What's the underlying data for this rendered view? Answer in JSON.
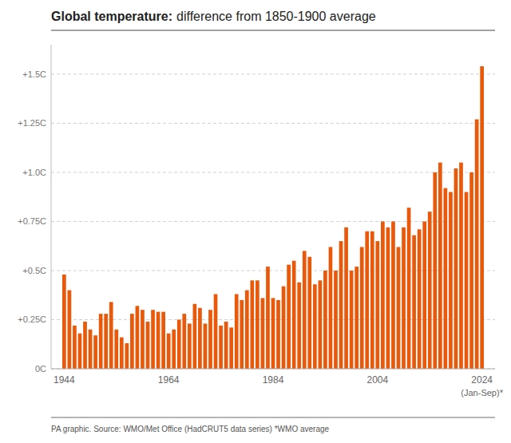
{
  "chart_data": {
    "type": "bar",
    "title": "Global temperature:",
    "subtitle": "difference from 1850-1900 average",
    "annotations": [
      {
        "text": "(Jan-Sep)*",
        "x": 2024
      },
      {
        "text": "PA graphic. Source: WMO/Met Office (HadCRUT5 data series) *WMO average"
      }
    ],
    "x": [
      1944,
      1945,
      1946,
      1947,
      1948,
      1949,
      1950,
      1951,
      1952,
      1953,
      1954,
      1955,
      1956,
      1957,
      1958,
      1959,
      1960,
      1961,
      1962,
      1963,
      1964,
      1965,
      1966,
      1967,
      1968,
      1969,
      1970,
      1971,
      1972,
      1973,
      1974,
      1975,
      1976,
      1977,
      1978,
      1979,
      1980,
      1981,
      1982,
      1983,
      1984,
      1985,
      1986,
      1987,
      1988,
      1989,
      1990,
      1991,
      1992,
      1993,
      1994,
      1995,
      1996,
      1997,
      1998,
      1999,
      2000,
      2001,
      2002,
      2003,
      2004,
      2005,
      2006,
      2007,
      2008,
      2009,
      2010,
      2011,
      2012,
      2013,
      2014,
      2015,
      2016,
      2017,
      2018,
      2019,
      2020,
      2021,
      2022,
      2023,
      2024
    ],
    "values": [
      0.48,
      0.4,
      0.22,
      0.18,
      0.24,
      0.2,
      0.17,
      0.28,
      0.28,
      0.34,
      0.2,
      0.16,
      0.13,
      0.28,
      0.32,
      0.3,
      0.24,
      0.3,
      0.29,
      0.29,
      0.18,
      0.2,
      0.25,
      0.28,
      0.23,
      0.33,
      0.31,
      0.23,
      0.3,
      0.38,
      0.22,
      0.24,
      0.21,
      0.38,
      0.35,
      0.4,
      0.45,
      0.45,
      0.36,
      0.52,
      0.36,
      0.35,
      0.42,
      0.53,
      0.55,
      0.44,
      0.6,
      0.57,
      0.43,
      0.45,
      0.5,
      0.62,
      0.5,
      0.65,
      0.72,
      0.5,
      0.52,
      0.62,
      0.7,
      0.7,
      0.65,
      0.75,
      0.72,
      0.75,
      0.62,
      0.72,
      0.82,
      0.68,
      0.71,
      0.75,
      0.8,
      1.0,
      1.05,
      0.92,
      0.9,
      1.02,
      1.05,
      0.9,
      1.0,
      1.27,
      1.54
    ],
    "color": "#e8590c",
    "xlim": [
      1941.5,
      2026.5
    ],
    "xticks": [
      1944,
      1964,
      1984,
      2004,
      2024
    ],
    "ylim": [
      0,
      1.65
    ],
    "yticks": [
      {
        "value": 0,
        "label": "0C"
      },
      {
        "value": 0.25,
        "label": "+0.25C"
      },
      {
        "value": 0.5,
        "label": "+0.5C"
      },
      {
        "value": 0.75,
        "label": "+0.75C"
      },
      {
        "value": 1.0,
        "label": "+1.0C"
      },
      {
        "value": 1.25,
        "label": "+1.25C"
      },
      {
        "value": 1.5,
        "label": "+1.5C"
      }
    ],
    "grid": true
  }
}
